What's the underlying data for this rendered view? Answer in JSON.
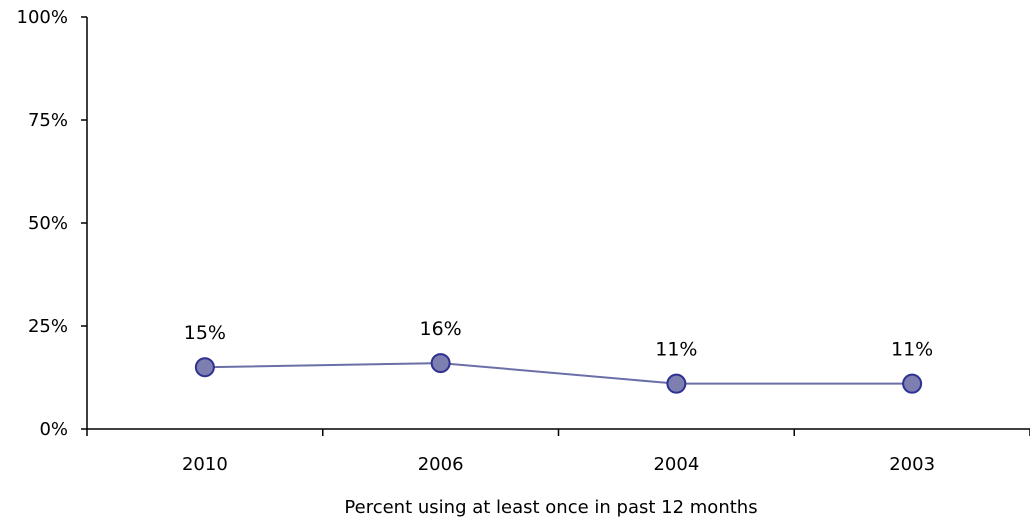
{
  "chart_data": {
    "type": "line",
    "categories": [
      "2010",
      "2006",
      "2004",
      "2003"
    ],
    "series": [
      {
        "values": [
          15,
          16,
          11,
          11
        ],
        "data_labels": [
          "15%",
          "16%",
          "11%",
          "11%"
        ],
        "line_color": "#6b6fa8",
        "marker_fill": "#7c7fb0",
        "marker_stroke": "#2e3192"
      }
    ],
    "ylim": [
      0,
      100
    ],
    "yticks": [
      0,
      25,
      50,
      75,
      100
    ],
    "ytick_labels": [
      "0%",
      "25%",
      "50%",
      "75%",
      "100%"
    ],
    "xlabel": "Percent using at least once in past 12 months",
    "ylabel": "",
    "grid": false,
    "legend": "none"
  }
}
